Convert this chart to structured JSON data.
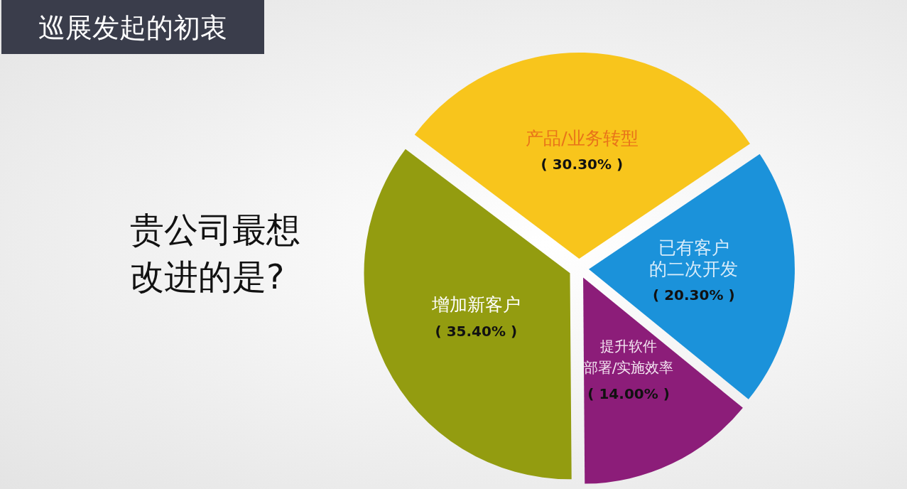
{
  "chart_data": {
    "type": "pie",
    "title": "巡展发起的初衷",
    "subtitle": "贵公司最想改进的是?",
    "categories": [
      "产品/业务转型",
      "已有客户的二次开发",
      "提升软件部署/实施效率",
      "增加新客户"
    ],
    "values": [
      30.3,
      20.3,
      14.0,
      35.4
    ],
    "value_labels": [
      "( 30.30% )",
      "( 20.30% )",
      "( 14.00% )",
      "( 35.40% )"
    ],
    "colors": [
      "#f8c51c",
      "#1b92da",
      "#8c1d79",
      "#939c10"
    ],
    "legend": false
  }
}
